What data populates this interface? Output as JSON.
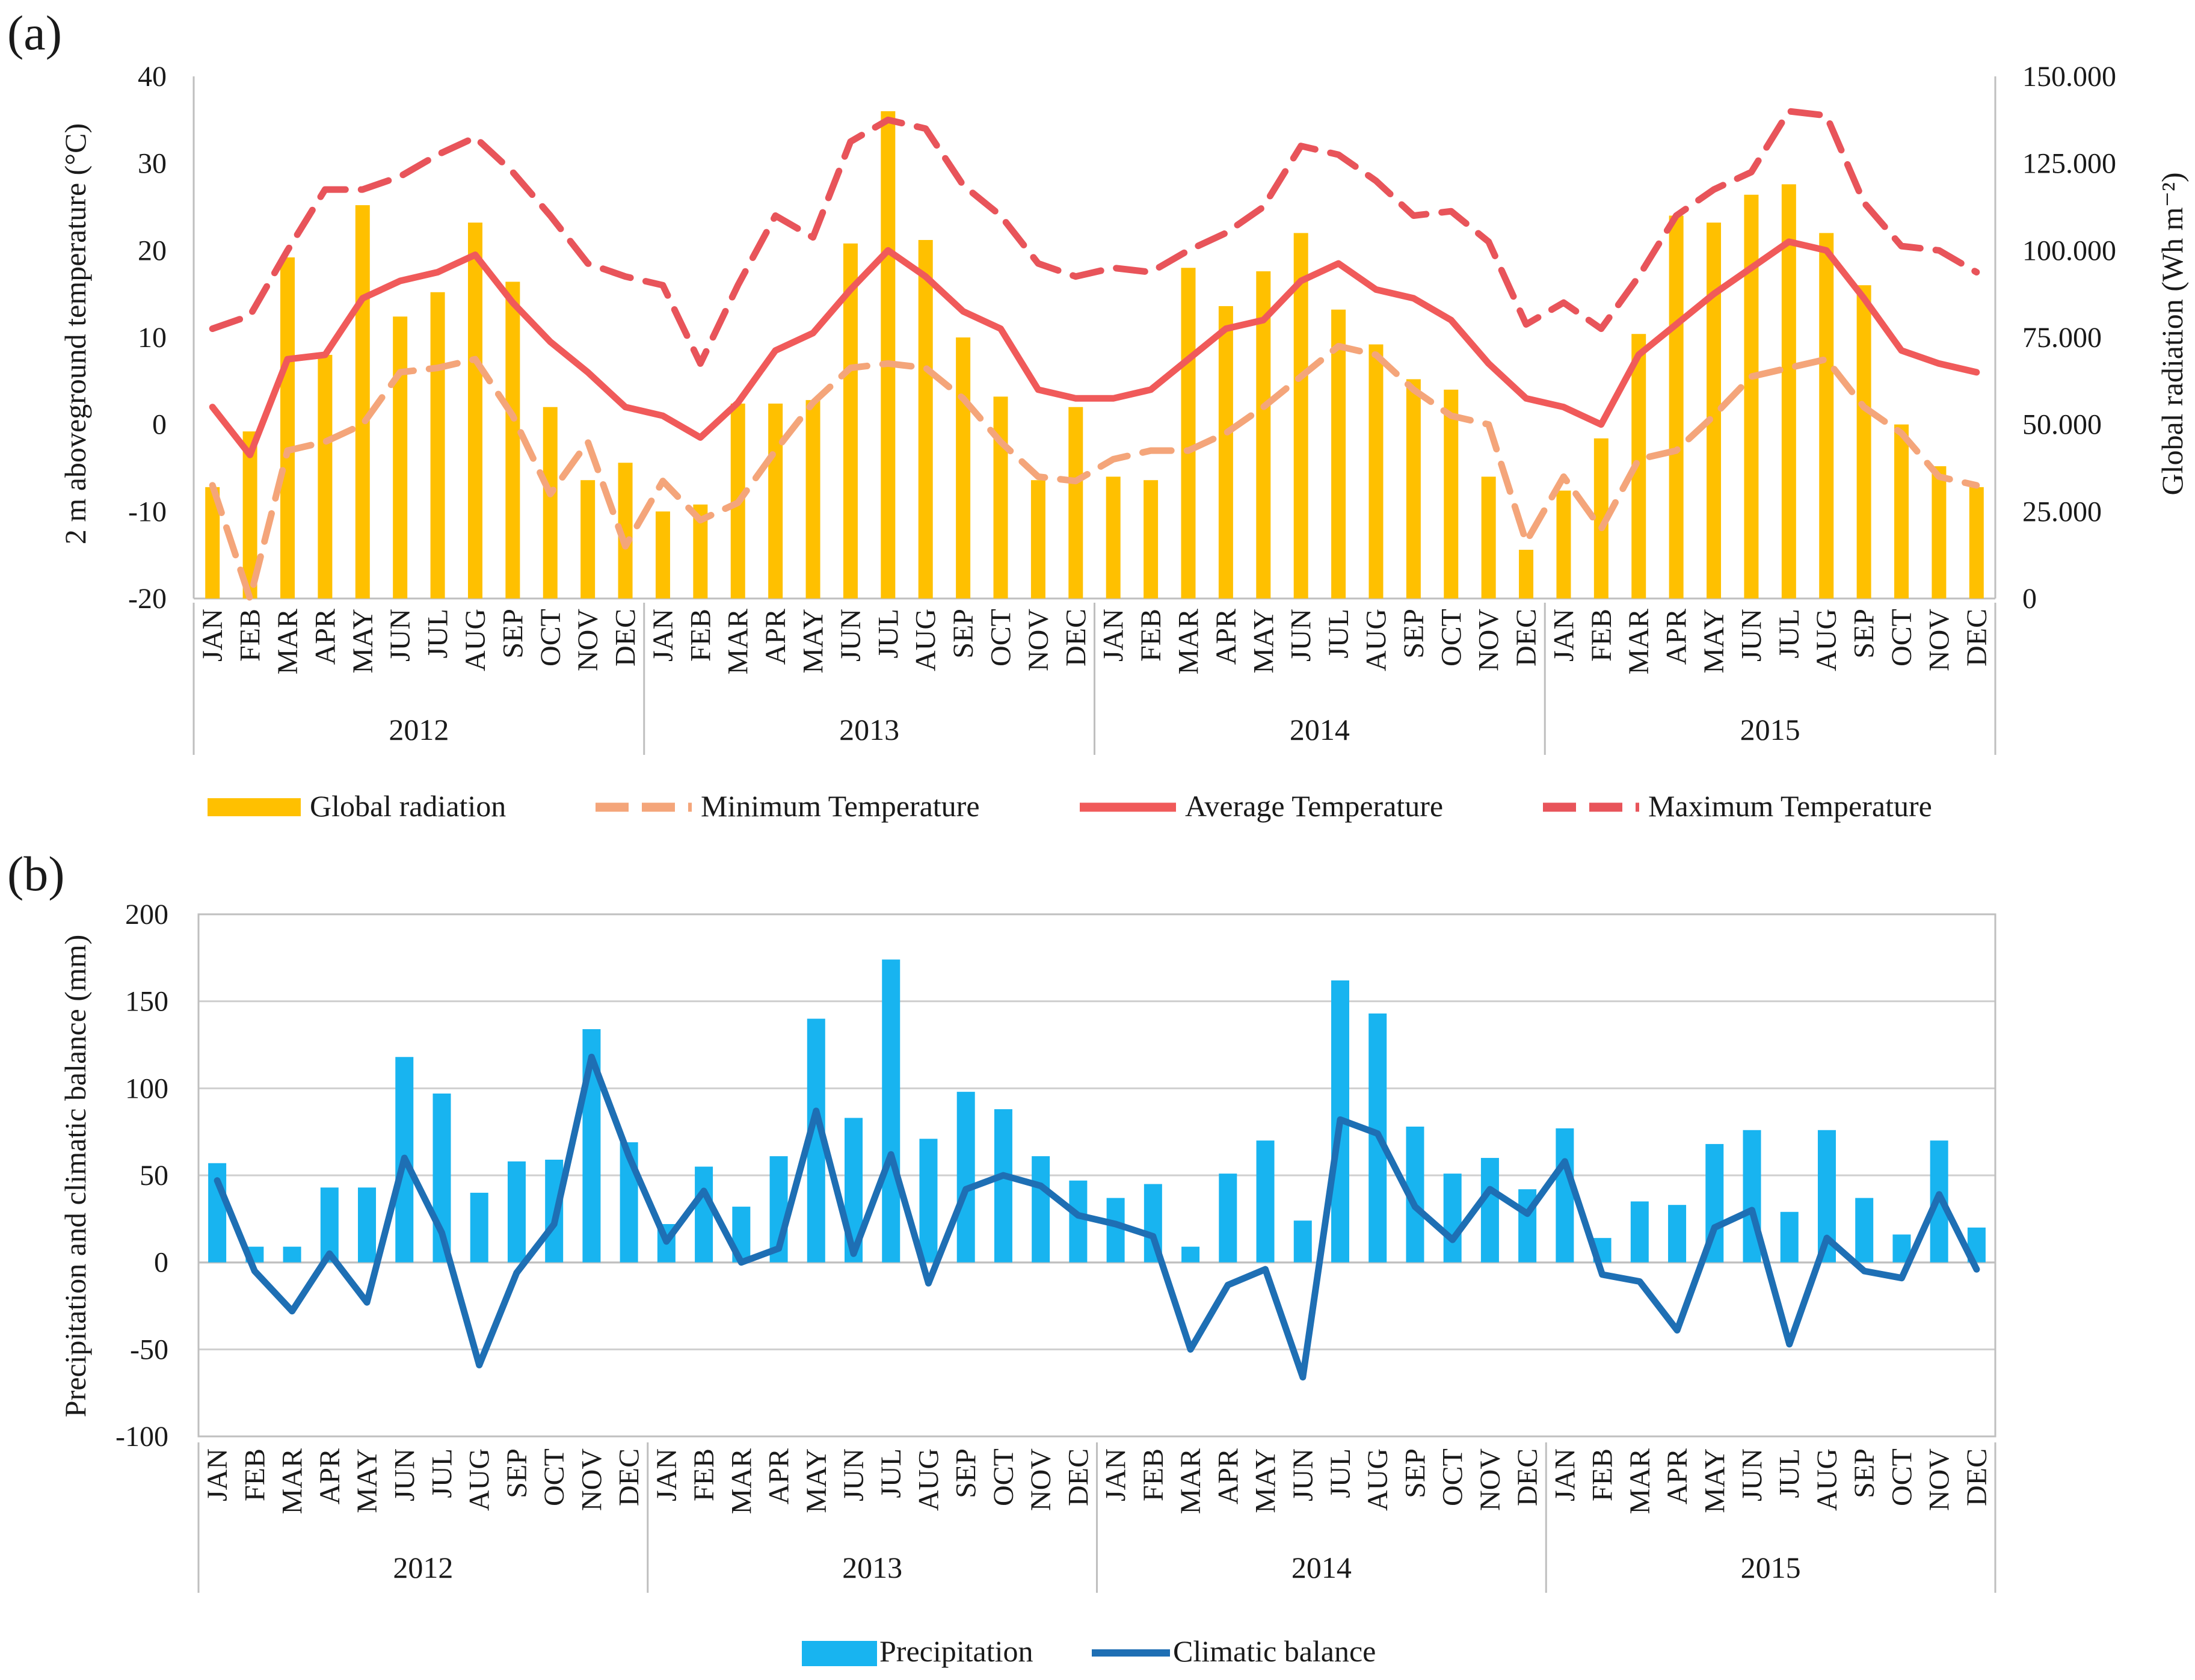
{
  "chart_data": [
    {
      "panel_label": "(a)",
      "type": "bar+line",
      "years": [
        "2012",
        "2013",
        "2014",
        "2015"
      ],
      "months": [
        "JAN",
        "FEB",
        "MAR",
        "APR",
        "MAY",
        "JUN",
        "JUL",
        "AUG",
        "SEP",
        "OCT",
        "NOV",
        "DEC"
      ],
      "ylabel_left": "2 m aboveground temperature (°C)",
      "ylabel_right": "Global radiation (Wh m⁻²)",
      "ylim_left": [
        -20,
        40
      ],
      "yticks_left": [
        "40",
        "30",
        "20",
        "10",
        "0",
        "-10",
        "-20"
      ],
      "ylim_right": [
        0,
        150000
      ],
      "yticks_right": [
        "150.000",
        "125.000",
        "100.000",
        "75.000",
        "50.000",
        "25.000",
        "0"
      ],
      "series": [
        {
          "name": "Global radiation",
          "type": "bar",
          "axis": "right",
          "color": "#FFC000",
          "values": [
            32000,
            48000,
            98000,
            70000,
            113000,
            81000,
            88000,
            108000,
            91000,
            55000,
            34000,
            39000,
            25000,
            27000,
            56000,
            56000,
            57000,
            102000,
            140000,
            103000,
            75000,
            58000,
            34000,
            55000,
            35000,
            34000,
            95000,
            84000,
            94000,
            105000,
            83000,
            73000,
            63000,
            60000,
            35000,
            14000,
            31000,
            46000,
            76000,
            110000,
            108000,
            116000,
            119000,
            105000,
            90000,
            50000,
            38000,
            32000
          ]
        },
        {
          "name": "Minimum Temperature",
          "type": "line",
          "axis": "left",
          "style": "dashed",
          "color": "#F4A57A",
          "values": [
            -7,
            -20,
            -3,
            -2,
            0,
            6,
            6.5,
            7.5,
            1,
            -8,
            -2,
            -14,
            -6.5,
            -11,
            -9,
            -3,
            2.5,
            6.5,
            7,
            6.5,
            3,
            -2,
            -6,
            -6.5,
            -4,
            -3,
            -3,
            -1,
            2,
            5.5,
            9,
            8,
            4,
            1,
            0,
            -13.5,
            -6,
            -12,
            -4,
            -3,
            1,
            5.5,
            6.5,
            7.5,
            2,
            -1,
            -6,
            -7
          ]
        },
        {
          "name": "Average Temperature",
          "type": "line",
          "axis": "left",
          "style": "solid",
          "color": "#F05A5A",
          "values": [
            2,
            -3.5,
            7.5,
            8,
            14.5,
            16.5,
            17.5,
            19.5,
            14,
            9.5,
            6,
            2,
            1,
            -1.5,
            2.5,
            8.5,
            10.5,
            15.5,
            20,
            17,
            13,
            11,
            4,
            3,
            3,
            4,
            7.5,
            11,
            12,
            16.5,
            18.5,
            15.5,
            14.5,
            12,
            7,
            3,
            2,
            0,
            8,
            11.5,
            15,
            18,
            21,
            20,
            14.5,
            8.5,
            7,
            6
          ]
        },
        {
          "name": "Maximum Temperature",
          "type": "line",
          "axis": "left",
          "style": "dashed",
          "color": "#E8545A",
          "values": [
            11,
            12.5,
            20,
            27,
            27,
            28.5,
            31,
            33,
            29,
            24,
            18.5,
            17,
            16,
            7,
            16,
            24,
            21.5,
            32.5,
            35,
            34,
            27.5,
            24,
            18.5,
            17,
            18,
            17.5,
            20,
            22,
            25,
            32,
            31,
            28,
            24,
            24.5,
            21,
            11.5,
            14,
            11,
            17,
            24,
            27,
            29,
            36,
            35.5,
            25.5,
            20.5,
            20,
            17.5
          ]
        }
      ],
      "legend": [
        "Global radiation",
        "Minimum Temperature",
        "Average Temperature",
        "Maximum Temperature"
      ]
    },
    {
      "panel_label": "(b)",
      "type": "bar+line",
      "years": [
        "2012",
        "2013",
        "2014",
        "2015"
      ],
      "months": [
        "JAN",
        "FEB",
        "MAR",
        "APR",
        "MAY",
        "JUN",
        "JUL",
        "AUG",
        "SEP",
        "OCT",
        "NOV",
        "DEC"
      ],
      "ylabel": "Precipitation and climatic balance (mm)",
      "ylim": [
        -100,
        200
      ],
      "yticks": [
        "200",
        "150",
        "100",
        "50",
        "0",
        "-50",
        "-100"
      ],
      "gridlines": true,
      "series": [
        {
          "name": "Precipitation",
          "type": "bar",
          "color": "#18B4F0",
          "values": [
            57,
            9,
            9,
            43,
            43,
            118,
            97,
            40,
            58,
            59,
            134,
            69,
            22,
            55,
            32,
            61,
            140,
            83,
            174,
            71,
            98,
            88,
            61,
            47,
            37,
            45,
            9,
            51,
            70,
            24,
            162,
            143,
            78,
            51,
            60,
            42,
            77,
            14,
            35,
            33,
            68,
            76,
            29,
            76,
            37,
            16,
            70,
            20
          ]
        },
        {
          "name": "Climatic balance",
          "type": "line",
          "color": "#1E6FB4",
          "values": [
            47,
            -5,
            -28,
            5,
            -23,
            60,
            17,
            -59,
            -6,
            22,
            118,
            61,
            12,
            41,
            0,
            8,
            87,
            5,
            62,
            -12,
            42,
            50,
            44,
            27,
            22,
            15,
            -50,
            -13,
            -4,
            -66,
            82,
            74,
            32,
            13,
            42,
            28,
            58,
            -7,
            -11,
            -39,
            20,
            30,
            -47,
            14,
            -5,
            -9,
            39,
            -4
          ]
        }
      ],
      "legend": [
        "Precipitation",
        "Climatic balance"
      ]
    }
  ]
}
